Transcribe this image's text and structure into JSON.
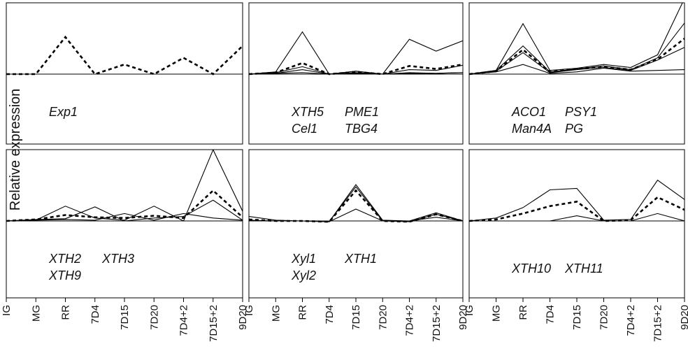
{
  "figure": {
    "ylabel": "Relative expression",
    "stroke_color": "#000000"
  },
  "chart_data": {
    "type": "line",
    "categories": [
      "IG",
      "MG",
      "RR",
      "7D4",
      "7D15",
      "7D20",
      "7D4+2",
      "7D15+2",
      "9D20"
    ],
    "ylabel": "Relative expression",
    "grid": false,
    "panels": [
      {
        "labels": [
          [
            "Exp1"
          ]
        ],
        "series": [
          {
            "style": "dashed",
            "values": [
              0,
              0,
              0.5,
              0,
              0.13,
              0,
              0.22,
              0,
              0.38
            ]
          }
        ]
      },
      {
        "labels": [
          [
            "XTH5",
            "Cel1"
          ],
          [
            "PME1",
            "TBG4"
          ]
        ],
        "series": [
          {
            "style": "solid",
            "values": [
              0,
              0.03,
              0.57,
              0,
              0.04,
              0,
              0.47,
              0.31,
              0.45
            ]
          },
          {
            "style": "solid",
            "values": [
              0,
              0.02,
              0.1,
              0,
              0.02,
              0,
              0.06,
              0.05,
              0.12
            ]
          },
          {
            "style": "solid",
            "values": [
              0,
              0.01,
              0.06,
              0,
              0.04,
              0,
              0.02,
              0.01,
              0.02
            ]
          },
          {
            "style": "solid",
            "values": [
              0,
              0.01,
              0.02,
              0,
              0.01,
              0,
              0.01,
              0.01,
              0.02
            ]
          },
          {
            "style": "dashed",
            "values": [
              0,
              0.02,
              0.15,
              0,
              0.03,
              0,
              0.11,
              0.07,
              0.13
            ]
          }
        ]
      },
      {
        "labels": [
          [
            "ACO1",
            "Man4A"
          ],
          [
            "PSY1",
            "PG"
          ]
        ],
        "series": [
          {
            "style": "solid",
            "values": [
              0,
              0.05,
              0.68,
              0.05,
              0.08,
              0.13,
              0.09,
              0.26,
              1.02
            ]
          },
          {
            "style": "solid",
            "values": [
              0,
              0.05,
              0.38,
              0.03,
              0.07,
              0.11,
              0.06,
              0.22,
              0.69
            ]
          },
          {
            "style": "solid",
            "values": [
              0,
              0.04,
              0.29,
              0.02,
              0.06,
              0.09,
              0.05,
              0.19,
              0.36
            ]
          },
          {
            "style": "solid",
            "values": [
              0,
              0.03,
              0.13,
              0.01,
              0.03,
              0.08,
              0.04,
              0.05,
              0.06
            ]
          },
          {
            "style": "dashed",
            "values": [
              0,
              0.04,
              0.33,
              0.03,
              0.07,
              0.1,
              0.06,
              0.2,
              0.48
            ]
          }
        ]
      },
      {
        "labels": [
          [
            "XTH2",
            "XTH9"
          ],
          [
            "XTH3"
          ]
        ],
        "series": [
          {
            "style": "solid",
            "values": [
              0,
              0.01,
              0.2,
              0.04,
              0.01,
              0.2,
              0.0,
              0.96,
              0.13
            ]
          },
          {
            "style": "solid",
            "values": [
              0,
              0.02,
              0.03,
              0.19,
              0.0,
              0.04,
              0.06,
              0.28,
              0.01
            ]
          },
          {
            "style": "solid",
            "values": [
              0,
              0.01,
              0.02,
              0.01,
              0.1,
              0.01,
              0.1,
              0.04,
              0.01
            ]
          },
          {
            "style": "dashed",
            "values": [
              0,
              0.02,
              0.08,
              0.05,
              0.04,
              0.07,
              0.04,
              0.41,
              0.05
            ]
          }
        ]
      },
      {
        "labels": [
          [
            "Xyl1",
            "Xyl2"
          ],
          [
            "XTH1"
          ]
        ],
        "series": [
          {
            "style": "solid",
            "values": [
              0.06,
              0.01,
              0,
              -0.01,
              0.49,
              0.01,
              0.0,
              0.11,
              0.0
            ]
          },
          {
            "style": "solid",
            "values": [
              0.01,
              0.0,
              0,
              -0.01,
              0.46,
              0.0,
              -0.01,
              0.09,
              0.0
            ]
          },
          {
            "style": "solid",
            "values": [
              0.0,
              0.0,
              0,
              -0.01,
              0.16,
              0.0,
              0.0,
              0.05,
              0.0
            ]
          },
          {
            "style": "dashed",
            "values": [
              0.02,
              0.0,
              0,
              -0.01,
              0.41,
              0.0,
              -0.01,
              0.09,
              0.0
            ]
          }
        ]
      },
      {
        "labels": [
          [
            "XTH10"
          ],
          [
            "XTH11"
          ]
        ],
        "series": [
          {
            "style": "solid",
            "values": [
              0,
              0.04,
              0.18,
              0.42,
              0.44,
              0.01,
              0.02,
              0.55,
              0.29
            ]
          },
          {
            "style": "solid",
            "values": [
              0,
              0.0,
              0.0,
              0.0,
              0.07,
              0.0,
              0.0,
              0.1,
              0.0
            ]
          },
          {
            "style": "dashed",
            "values": [
              0,
              0.02,
              0.1,
              0.2,
              0.26,
              0.0,
              0.01,
              0.32,
              0.15
            ]
          }
        ]
      }
    ]
  }
}
